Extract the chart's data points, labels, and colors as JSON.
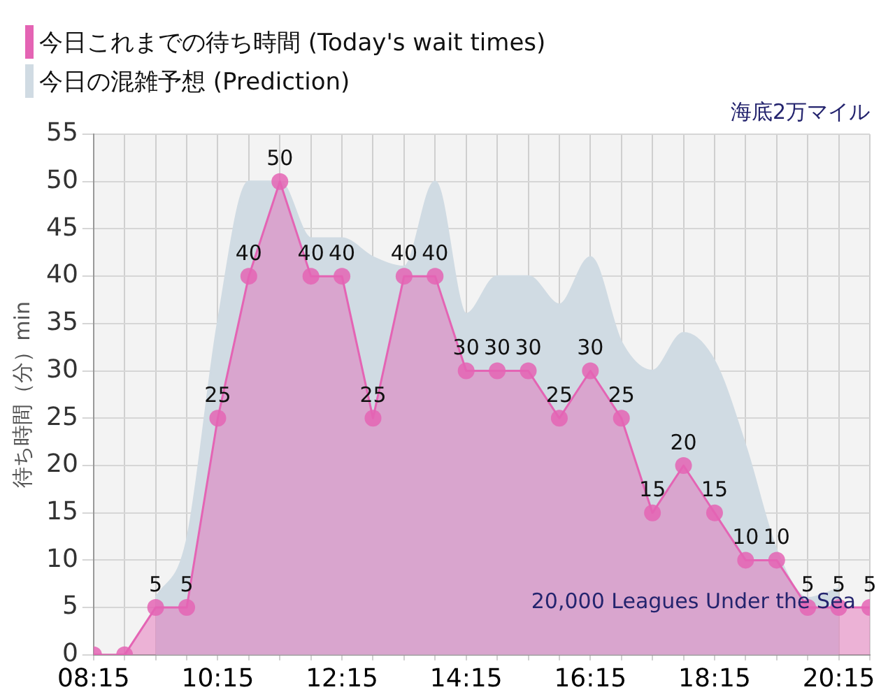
{
  "chart_data": {
    "type": "area",
    "title": "海底2万マイル",
    "ylabel": "待ち時間（分）min",
    "annotations": [
      "20,000 Leagues Under the Sea"
    ],
    "x": [
      8.25,
      8.75,
      9.25,
      9.75,
      10.25,
      10.75,
      11.25,
      11.75,
      12.25,
      12.75,
      13.25,
      13.75,
      14.25,
      14.75,
      15.25,
      15.75,
      16.25,
      16.75,
      17.25,
      17.75,
      18.25,
      18.75,
      19.25,
      19.75,
      20.25,
      20.75
    ],
    "series": [
      {
        "name": "今日これまでの待ち時間 (Today's wait times)",
        "color": "#e464b4",
        "values": [
          0,
          0,
          5,
          5,
          25,
          40,
          50,
          40,
          40,
          25,
          40,
          40,
          30,
          30,
          30,
          25,
          30,
          25,
          15,
          20,
          15,
          10,
          10,
          5,
          5,
          5
        ],
        "value_labels": [
          null,
          null,
          "5",
          "5",
          "25",
          "40",
          "50",
          "40",
          "40",
          "25",
          "40",
          "40",
          "30",
          "30",
          "30",
          "25",
          "30",
          "25",
          "15",
          "20",
          "15",
          "10",
          "10",
          "5",
          "5",
          "5"
        ]
      },
      {
        "name": "今日の混雑予想 (Prediction)",
        "color": "#d0dbe3",
        "marker": "none",
        "values": [
          null,
          null,
          6,
          12,
          35,
          50,
          50,
          44,
          44,
          42,
          41,
          50,
          36,
          40,
          40,
          37,
          42,
          33,
          30,
          34,
          31,
          22,
          11,
          6,
          7,
          null
        ]
      }
    ],
    "xlim": [
      8.25,
      20.75
    ],
    "xticks": [
      {
        "value": 8.25,
        "label": "08:15"
      },
      {
        "value": 8.75,
        "label": null
      },
      {
        "value": 9.25,
        "label": null
      },
      {
        "value": 9.75,
        "label": null
      },
      {
        "value": 10.25,
        "label": "10:15"
      },
      {
        "value": 10.75,
        "label": null
      },
      {
        "value": 11.25,
        "label": null
      },
      {
        "value": 11.75,
        "label": null
      },
      {
        "value": 12.25,
        "label": "12:15"
      },
      {
        "value": 12.75,
        "label": null
      },
      {
        "value": 13.25,
        "label": null
      },
      {
        "value": 13.75,
        "label": null
      },
      {
        "value": 14.25,
        "label": "14:15"
      },
      {
        "value": 14.75,
        "label": null
      },
      {
        "value": 15.25,
        "label": null
      },
      {
        "value": 15.75,
        "label": null
      },
      {
        "value": 16.25,
        "label": "16:15"
      },
      {
        "value": 16.75,
        "label": null
      },
      {
        "value": 17.25,
        "label": null
      },
      {
        "value": 17.75,
        "label": null
      },
      {
        "value": 18.25,
        "label": "18:15"
      },
      {
        "value": 18.75,
        "label": null
      },
      {
        "value": 19.25,
        "label": null
      },
      {
        "value": 19.75,
        "label": null
      },
      {
        "value": 20.25,
        "label": "20:15"
      },
      {
        "value": 20.75,
        "label": null
      }
    ],
    "ylim": [
      0,
      55
    ],
    "yticks": [
      0,
      5,
      10,
      15,
      20,
      25,
      30,
      35,
      40,
      45,
      50,
      55
    ],
    "grid": true,
    "legend": "top left",
    "marker": "circle",
    "line_style": "solid"
  }
}
